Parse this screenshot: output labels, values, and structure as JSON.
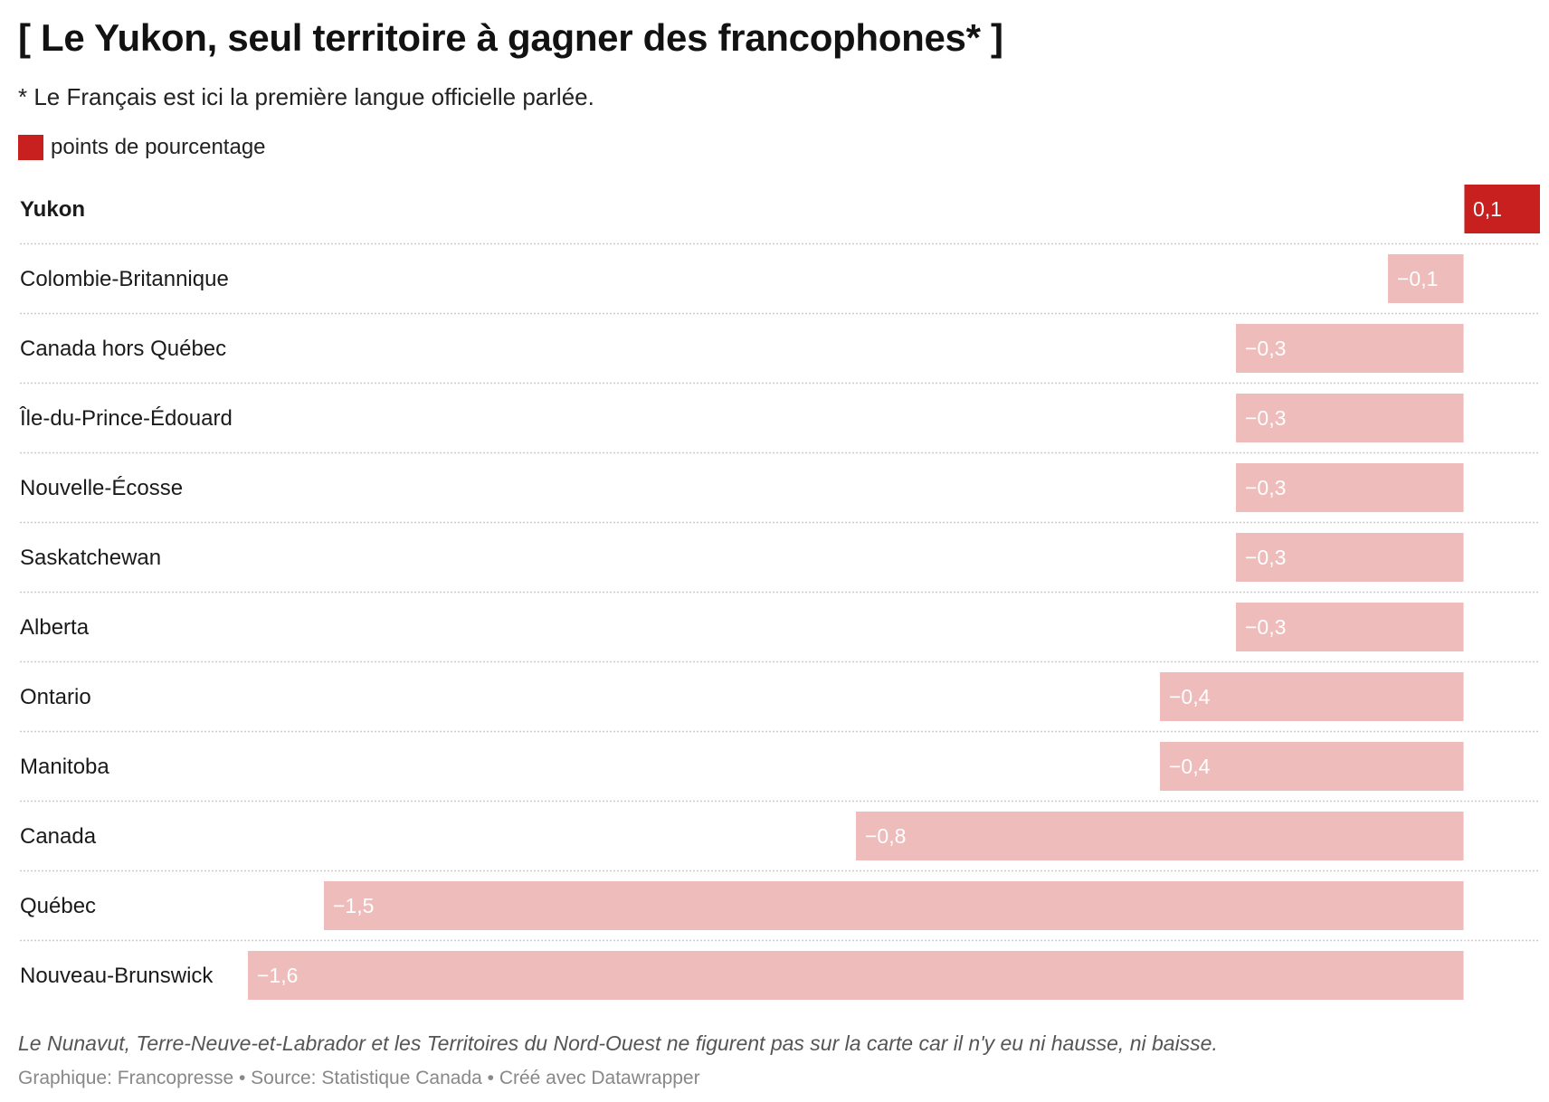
{
  "title": "[ Le Yukon, seul territoire à gagner des francophones* ]",
  "subtitle": "* Le Français est ici la première langue officielle parlée.",
  "legend": {
    "label": "points de pourcentage",
    "color": "#c8201f"
  },
  "colors": {
    "positive": "#c8201f",
    "negative": "#eebcbb",
    "separator": "#cccccc"
  },
  "footer": {
    "note": "Le Nunavut, Terre-Neuve-et-Labrador et les Territoires du Nord-Ouest ne figurent pas sur la carte car il n'y eu ni hausse, ni baisse.",
    "credit": "Graphique: Francopresse • Source: Statistique Canada • Créé avec Datawrapper"
  },
  "chart_data": {
    "type": "bar",
    "orientation": "horizontal",
    "title": "[ Le Yukon, seul territoire à gagner des francophones* ]",
    "unit": "points de pourcentage",
    "highlight": "Yukon",
    "categories": [
      "Yukon",
      "Colombie-Britannique",
      "Canada hors Québec",
      "Île-du-Prince-Édouard",
      "Nouvelle-Écosse",
      "Saskatchewan",
      "Alberta",
      "Ontario",
      "Manitoba",
      "Canada",
      "Québec",
      "Nouveau-Brunswick"
    ],
    "values": [
      0.1,
      -0.1,
      -0.3,
      -0.3,
      -0.3,
      -0.3,
      -0.3,
      -0.4,
      -0.4,
      -0.8,
      -1.5,
      -1.6
    ],
    "value_labels": [
      "0,1",
      "−0,1",
      "−0,3",
      "−0,3",
      "−0,3",
      "−0,3",
      "−0,3",
      "−0,4",
      "−0,4",
      "−0,8",
      "−1,5",
      "−1,6"
    ],
    "xlim": [
      -1.6,
      0.1
    ],
    "grid": false
  }
}
